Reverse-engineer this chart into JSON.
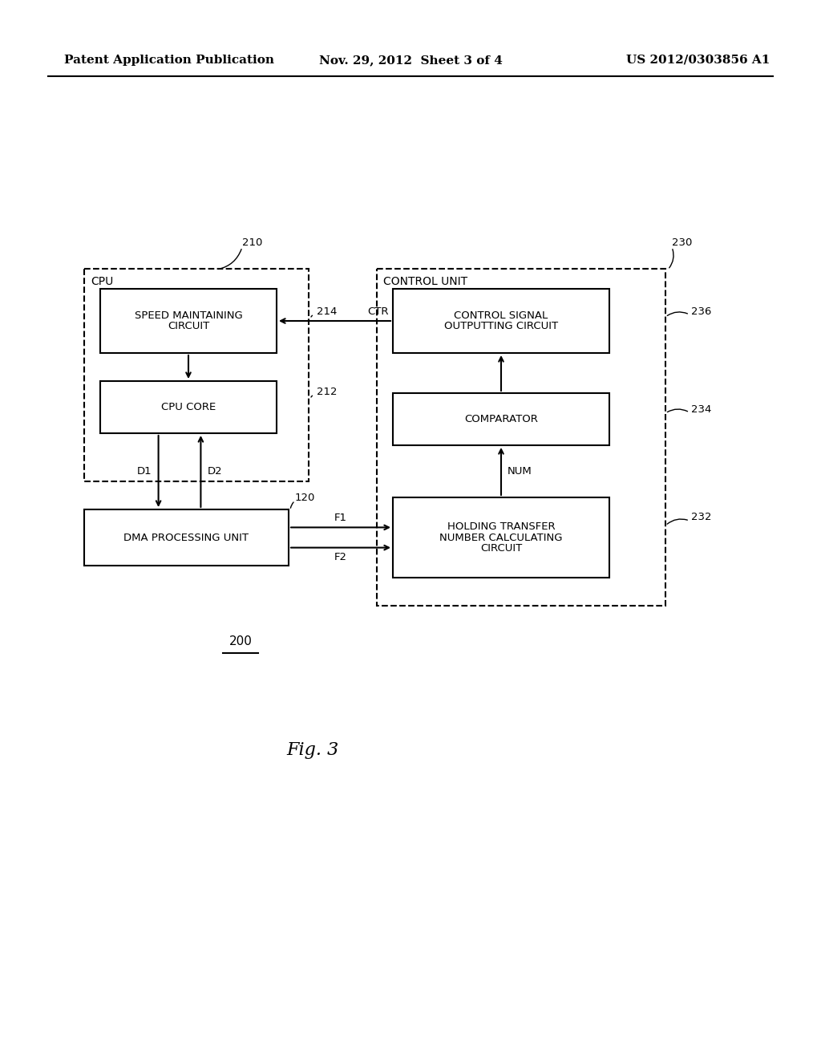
{
  "bg_color": "#ffffff",
  "header_left": "Patent Application Publication",
  "header_mid": "Nov. 29, 2012  Sheet 3 of 4",
  "header_right": "US 2012/0303856 A1",
  "fig_label": "Fig. 3",
  "diagram_label": "200"
}
